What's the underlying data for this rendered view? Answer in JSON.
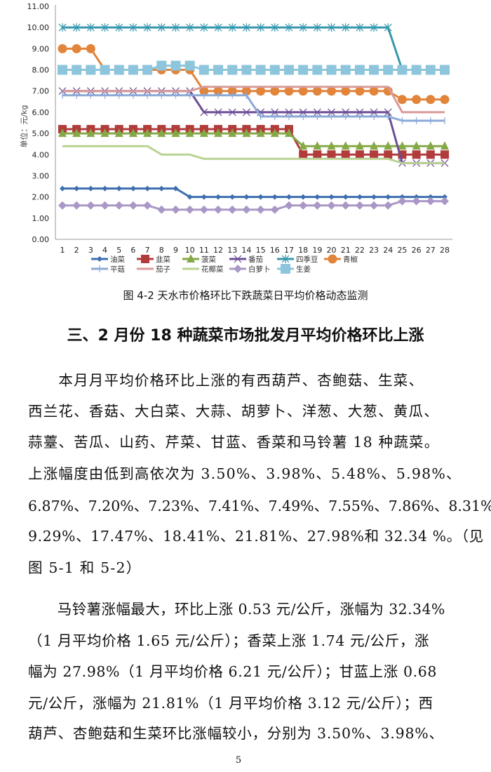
{
  "chart_data": {
    "type": "line",
    "title": "",
    "ylabel": "单位：元/kg",
    "xlabel": "",
    "ylim": [
      0,
      11
    ],
    "yticks": [
      "0.00",
      "1.00",
      "2.00",
      "3.00",
      "4.00",
      "5.00",
      "6.00",
      "7.00",
      "8.00",
      "9.00",
      "10.00",
      "11.00"
    ],
    "x": [
      1,
      2,
      3,
      4,
      5,
      6,
      7,
      8,
      9,
      10,
      11,
      12,
      13,
      14,
      15,
      16,
      17,
      18,
      19,
      20,
      21,
      22,
      23,
      24,
      25,
      26,
      27,
      28
    ],
    "legend_position": "bottom",
    "grid": false,
    "series": [
      {
        "name": "油菜",
        "color": "#3d6fae",
        "marker": "diamond-small",
        "values": [
          2.4,
          2.4,
          2.4,
          2.4,
          2.4,
          2.4,
          2.4,
          2.4,
          2.4,
          2.0,
          2.0,
          2.0,
          2.0,
          2.0,
          2.0,
          2.0,
          2.0,
          2.0,
          2.0,
          2.0,
          2.0,
          2.0,
          2.0,
          2.0,
          2.0,
          2.0,
          2.0,
          2.0
        ]
      },
      {
        "name": "韭菜",
        "color": "#b23b3b",
        "marker": "square",
        "values": [
          5.2,
          5.2,
          5.2,
          5.2,
          5.2,
          5.2,
          5.2,
          5.2,
          5.2,
          5.2,
          5.2,
          5.2,
          5.2,
          5.2,
          5.2,
          5.2,
          5.2,
          4.0,
          4.0,
          4.0,
          4.0,
          4.0,
          4.0,
          4.0,
          4.0,
          4.0,
          4.0,
          4.0
        ]
      },
      {
        "name": "菠菜",
        "color": "#85a947",
        "marker": "triangle",
        "values": [
          5.0,
          5.0,
          5.0,
          5.0,
          5.0,
          5.0,
          5.0,
          5.0,
          5.0,
          5.0,
          5.0,
          5.0,
          5.0,
          5.0,
          5.0,
          5.0,
          5.0,
          4.4,
          4.4,
          4.4,
          4.4,
          4.4,
          4.4,
          4.4,
          4.4,
          4.4,
          4.4,
          4.4
        ]
      },
      {
        "name": "番茄",
        "color": "#6c4d95",
        "marker": "x",
        "values": [
          7.0,
          7.0,
          7.0,
          7.0,
          7.0,
          7.0,
          7.0,
          7.0,
          7.0,
          7.0,
          6.0,
          6.0,
          6.0,
          6.0,
          6.0,
          6.0,
          6.0,
          6.0,
          6.0,
          6.0,
          6.0,
          6.0,
          6.0,
          6.0,
          3.6,
          3.6,
          3.6,
          3.6
        ]
      },
      {
        "name": "四季豆",
        "color": "#3597ad",
        "marker": "asterisk",
        "values": [
          10,
          10,
          10,
          10,
          10,
          10,
          10,
          10,
          10,
          10,
          10,
          10,
          10,
          10,
          10,
          10,
          10,
          10,
          10,
          10,
          10,
          10,
          10,
          10,
          8.0,
          8.0,
          8.0,
          8.0
        ]
      },
      {
        "name": "青椒",
        "color": "#e2843a",
        "marker": "circle",
        "values": [
          9.0,
          9.0,
          9.0,
          8.0,
          8.0,
          8.0,
          8.0,
          8.0,
          8.0,
          8.0,
          7.0,
          7.0,
          7.0,
          7.0,
          7.0,
          7.0,
          7.0,
          7.0,
          7.0,
          7.0,
          7.0,
          7.0,
          7.0,
          7.0,
          6.6,
          6.6,
          6.6,
          6.6
        ]
      },
      {
        "name": "平菇",
        "color": "#8caad8",
        "marker": "plus",
        "values": [
          6.8,
          6.8,
          6.8,
          6.8,
          6.8,
          6.8,
          6.8,
          6.8,
          6.8,
          6.8,
          6.8,
          6.8,
          6.8,
          6.8,
          5.8,
          5.8,
          5.8,
          5.8,
          5.8,
          5.8,
          5.8,
          5.8,
          5.8,
          5.8,
          5.6,
          5.6,
          5.6,
          5.6
        ]
      },
      {
        "name": "茄子",
        "color": "#d99a9a",
        "marker": "none",
        "values": [
          7.0,
          7.0,
          7.0,
          7.0,
          7.0,
          7.0,
          7.0,
          7.0,
          7.0,
          7.0,
          7.2,
          7.2,
          7.2,
          7.2,
          7.2,
          7.2,
          7.2,
          7.2,
          7.2,
          7.2,
          7.2,
          7.2,
          7.2,
          7.2,
          6.0,
          6.0,
          6.0,
          6.0
        ]
      },
      {
        "name": "花椰菜",
        "color": "#b9d292",
        "marker": "none",
        "values": [
          4.4,
          4.4,
          4.4,
          4.4,
          4.4,
          4.4,
          4.4,
          4.0,
          4.0,
          4.0,
          3.8,
          3.8,
          3.8,
          3.8,
          3.8,
          3.8,
          3.8,
          3.8,
          3.8,
          3.8,
          3.8,
          3.8,
          3.8,
          3.8,
          3.6,
          3.6,
          3.6,
          3.6
        ]
      },
      {
        "name": "白萝卜",
        "color": "#a998c6",
        "marker": "diamond",
        "values": [
          1.6,
          1.6,
          1.6,
          1.6,
          1.6,
          1.6,
          1.6,
          1.4,
          1.4,
          1.4,
          1.4,
          1.4,
          1.4,
          1.4,
          1.4,
          1.4,
          1.6,
          1.6,
          1.6,
          1.6,
          1.6,
          1.6,
          1.6,
          1.6,
          1.8,
          1.8,
          1.8,
          1.8
        ]
      },
      {
        "name": "生姜",
        "color": "#8dc5dc",
        "marker": "square-large",
        "values": [
          8.0,
          8.0,
          8.0,
          8.0,
          8.0,
          8.0,
          8.0,
          8.2,
          8.2,
          8.2,
          8.0,
          8.0,
          8.0,
          8.0,
          8.0,
          8.0,
          8.0,
          8.0,
          8.0,
          8.0,
          8.0,
          8.0,
          8.0,
          8.0,
          8.0,
          8.0,
          8.0,
          8.0
        ]
      }
    ]
  },
  "caption": "图 4-2  天水市价格环比下跌蔬菜日平均价格动态监测",
  "heading": "三、2 月份 18 种蔬菜市场批发月平均价格环比上涨",
  "paragraph1": [
    "　　本月月平均价格环比上涨的有西葫芦、杏鲍菇、生菜、",
    "西兰花、香菇、大白菜、大蒜、胡萝卜、洋葱、大葱、黄瓜、",
    "蒜薹、苦瓜、山药、芹菜、甘蓝、香菜和马铃薯 18 种蔬菜。",
    "上涨幅度由低到高依次为 3.50%、3.98%、5.48%、5.98%、",
    "6.87%、7.20%、7.23%、7.41%、7.49%、7.55%、7.86%、8.31%、",
    "9.29%、17.47%、18.41%、21.81%、27.98%和 32.34 %。（见",
    "图 5-1 和 5-2）"
  ],
  "paragraph2": [
    "　　马铃薯涨幅最大，环比上涨 0.53 元/公斤，涨幅为 32.34%",
    "（1 月平均价格 1.65 元/公斤）；香菜上涨 1.74 元/公斤，涨",
    "幅为 27.98%（1 月平均价格 6.21 元/公斤）；甘蓝上涨 0.68",
    "元/公斤，涨幅为 21.81%（1 月平均价格 3.12 元/公斤）；西",
    "葫芦、杏鲍菇和生菜环比涨幅较小，分别为 3.50%、3.98%、"
  ],
  "page_number": "5"
}
